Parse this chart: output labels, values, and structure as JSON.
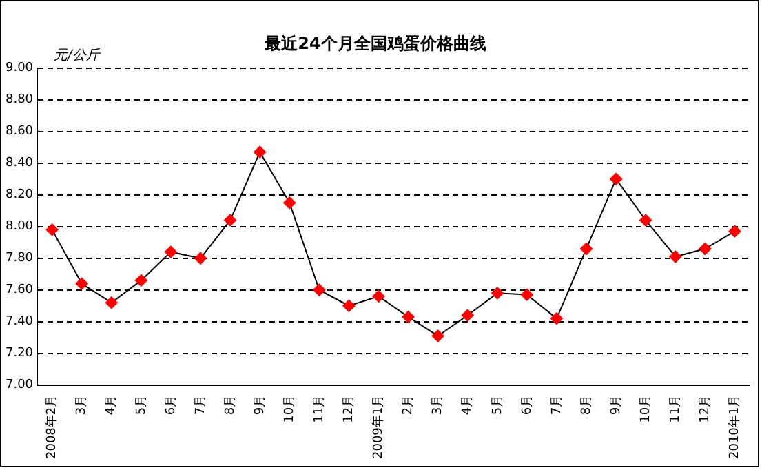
{
  "chart_data": {
    "type": "line",
    "title": "最近24个月全国鸡蛋价格曲线",
    "ylabel": "元/公斤",
    "categories": [
      "2008年2月",
      "3月",
      "4月",
      "5月",
      "6月",
      "7月",
      "8月",
      "9月",
      "10月",
      "11月",
      "12月",
      "2009年1月",
      "2月",
      "3月",
      "4月",
      "5月",
      "6月",
      "7月",
      "8月",
      "9月",
      "10月",
      "11月",
      "12月",
      "2010年1月"
    ],
    "series": [
      {
        "color": "#ff0000",
        "values": [
          7.98,
          7.64,
          7.52,
          7.66,
          7.84,
          7.8,
          8.04,
          8.47,
          8.15,
          7.6,
          7.5,
          7.56,
          7.43,
          7.31,
          7.44,
          7.58,
          7.57,
          7.42,
          7.86,
          8.3,
          8.04,
          7.81,
          7.86,
          7.97
        ]
      }
    ],
    "ylim": [
      7,
      9
    ],
    "yticks": [
      {
        "value": 7,
        "label": "7.00"
      },
      {
        "value": 7.2,
        "label": "7.20"
      },
      {
        "value": 7.4,
        "label": "7.40"
      },
      {
        "value": 7.6,
        "label": "7.60"
      },
      {
        "value": 7.8,
        "label": "7.80"
      },
      {
        "value": 8,
        "label": "8.00"
      },
      {
        "value": 8.2,
        "label": "8.20"
      },
      {
        "value": 8.4,
        "label": "8.40"
      },
      {
        "value": 8.6,
        "label": "8.60"
      },
      {
        "value": 8.8,
        "label": "8.80"
      },
      {
        "value": 9,
        "label": "9.00"
      }
    ],
    "grid": "y",
    "legend": false,
    "marker": "diamond",
    "line_style": "solid"
  }
}
